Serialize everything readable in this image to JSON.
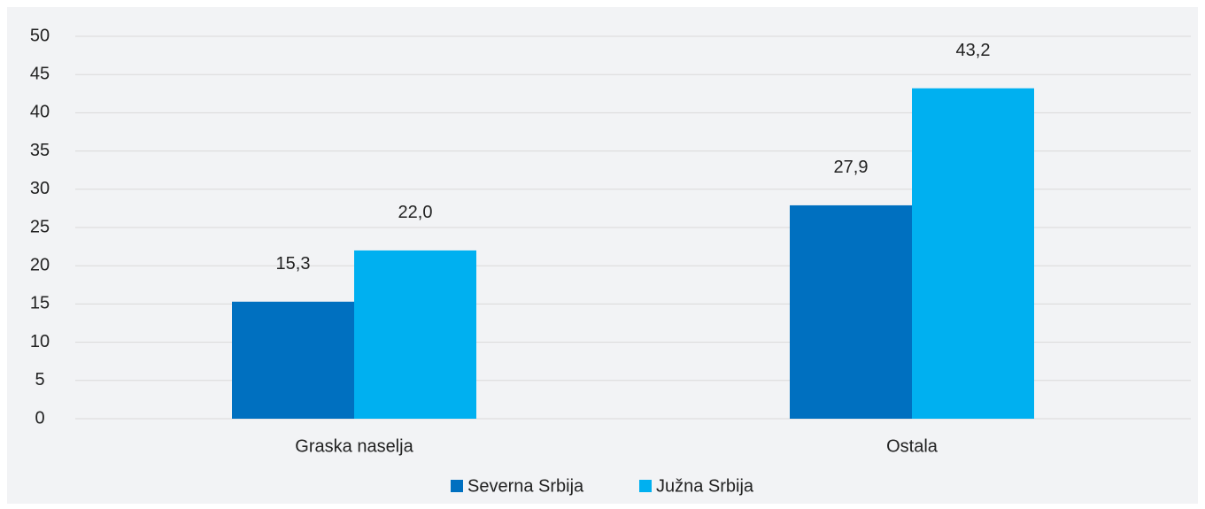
{
  "chart_data": {
    "type": "bar",
    "categories": [
      "Graska naselja",
      "Ostala"
    ],
    "series": [
      {
        "name": "Severna Srbija",
        "color": "#0070c0",
        "values": [
          15.3,
          27.9
        ],
        "value_labels": [
          "15,3",
          "27,9"
        ]
      },
      {
        "name": "Južna Srbija",
        "color": "#00b0f0",
        "values": [
          22.0,
          43.2
        ],
        "value_labels": [
          "22,0",
          "43,2"
        ]
      }
    ],
    "ylim": [
      0,
      50
    ],
    "yticks": [
      0,
      5,
      10,
      15,
      20,
      25,
      30,
      35,
      40,
      45,
      50
    ],
    "grid": true,
    "legend": "bottom"
  }
}
